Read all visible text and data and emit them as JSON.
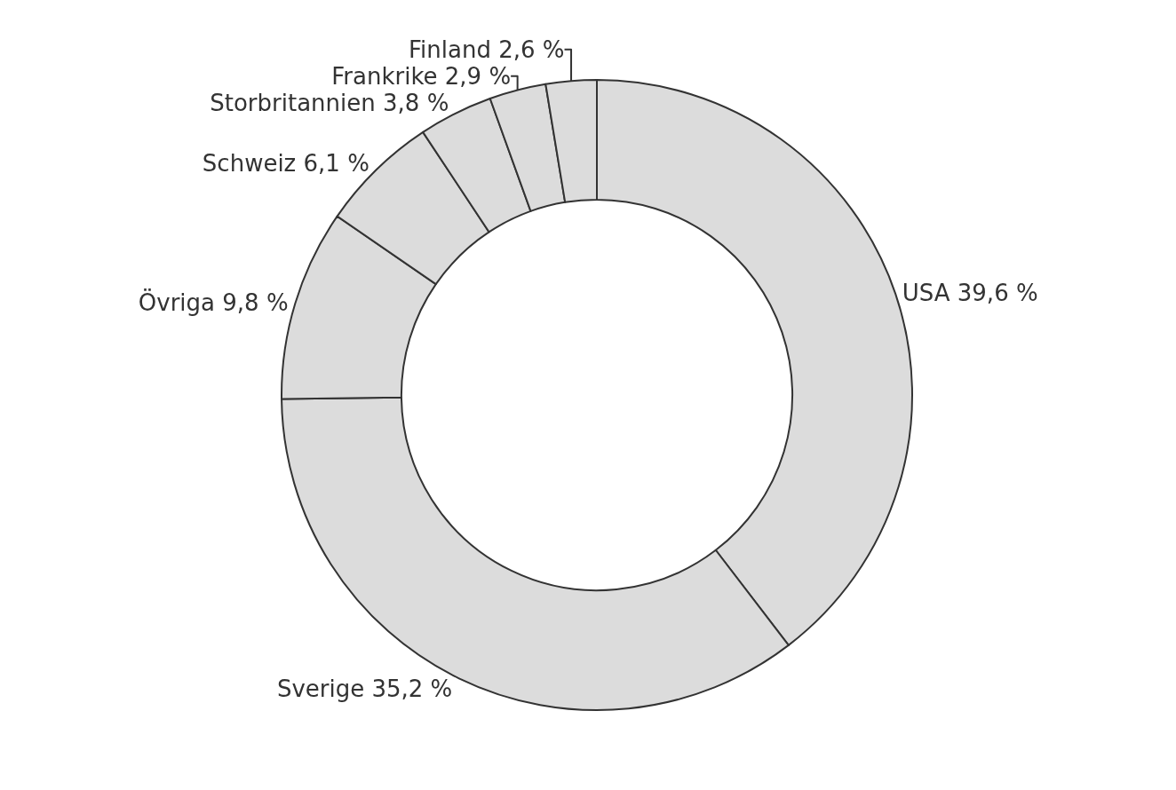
{
  "chart_data": {
    "type": "donut",
    "categories": [
      "USA",
      "Sverige",
      "Övriga",
      "Schweiz",
      "Storbritannien",
      "Frankrike",
      "Finland"
    ],
    "values": [
      39.6,
      35.2,
      9.8,
      6.1,
      3.8,
      2.9,
      2.6
    ],
    "value_labels": [
      "39,6 %",
      "35,2 %",
      "9,8 %",
      "6,1 %",
      "3,8 %",
      "2,9 %",
      "2,6 %"
    ],
    "colors": [
      "#dcdcdc",
      "#dcdcdc",
      "#dcdcdc",
      "#dcdcdc",
      "#dcdcdc",
      "#dcdcdc",
      "#dcdcdc"
    ],
    "legend": false
  }
}
